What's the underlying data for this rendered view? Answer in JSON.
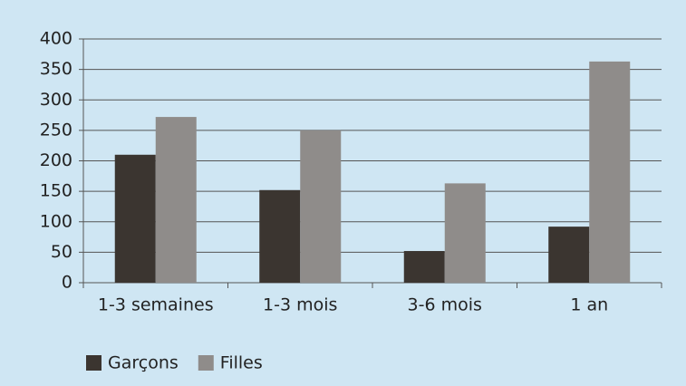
{
  "chart_data": {
    "type": "bar",
    "categories": [
      "1-3 semaines",
      "1-3 mois",
      "3-6 mois",
      "1 an"
    ],
    "series": [
      {
        "name": "Garçons",
        "color": "#3b3530",
        "values": [
          210,
          152,
          52,
          92
        ]
      },
      {
        "name": "Filles",
        "color": "#8f8c8a",
        "values": [
          272,
          250,
          163,
          363
        ]
      }
    ],
    "ylim": [
      0,
      400
    ],
    "yticks": [
      0,
      50,
      100,
      150,
      200,
      250,
      300,
      350,
      400
    ],
    "grid": true,
    "legend": "bottom-left"
  }
}
